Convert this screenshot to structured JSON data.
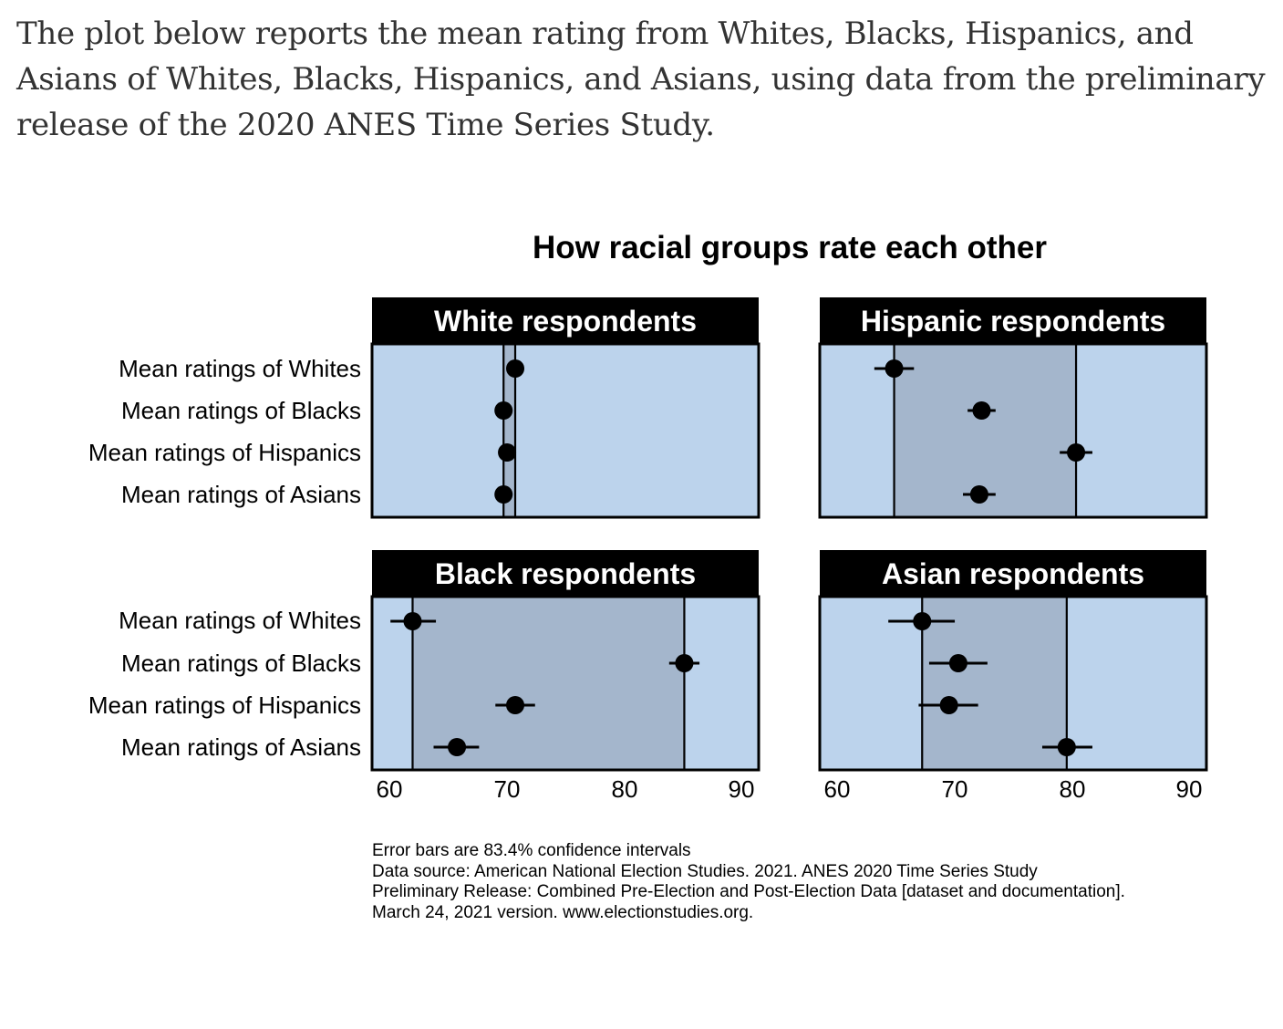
{
  "intro": {
    "text": "The plot below reports the mean rating from Whites, Blacks, Hispanics, and Asians of Whites, Blacks, Hispanics, and Asians, using data from the preliminary release of the 2020 ANES Time Series Study."
  },
  "colors": {
    "panel_background": "#bcd3ec",
    "range_band": "#a4b6cc",
    "panel_header": "#000000",
    "point": "#000000"
  },
  "chart_data": {
    "type": "scatter",
    "title": "How racial groups rate each other",
    "row_labels": [
      "Mean ratings of Whites",
      "Mean ratings of Blacks",
      "Mean ratings of Hispanics",
      "Mean ratings of Asians"
    ],
    "xlim": [
      59,
      92
    ],
    "xticks": [
      "60",
      "70",
      "80",
      "90"
    ],
    "error_bars": "83.4% confidence intervals",
    "panels": [
      {
        "title": "White respondents",
        "values": [
          71.2,
          70.2,
          70.5,
          70.2
        ],
        "ci_low": [
          71.0,
          70.0,
          70.3,
          70.0
        ],
        "ci_high": [
          71.4,
          70.4,
          70.7,
          70.4
        ]
      },
      {
        "title": "Hispanic respondents",
        "values": [
          65.3,
          72.8,
          80.9,
          72.6
        ],
        "ci_low": [
          63.6,
          71.6,
          79.5,
          71.2
        ],
        "ci_high": [
          67.0,
          74.0,
          82.3,
          74.0
        ]
      },
      {
        "title": "Black respondents",
        "values": [
          62.4,
          85.7,
          71.2,
          66.2
        ],
        "ci_low": [
          60.5,
          84.4,
          69.5,
          64.2
        ],
        "ci_high": [
          64.4,
          87.0,
          72.9,
          68.1
        ]
      },
      {
        "title": "Asian respondents",
        "values": [
          67.7,
          70.8,
          70.0,
          80.1
        ],
        "ci_low": [
          64.8,
          68.3,
          67.4,
          78.0
        ],
        "ci_high": [
          70.5,
          73.3,
          72.5,
          82.3
        ]
      }
    ]
  },
  "caption": {
    "lines": [
      "Error bars are 83.4% confidence intervals",
      "Data source: American National Election Studies. 2021. ANES 2020 Time Series Study",
      "Preliminary Release: Combined Pre-Election and Post-Election Data [dataset and documentation].",
      "March 24, 2021 version. www.electionstudies.org."
    ]
  }
}
